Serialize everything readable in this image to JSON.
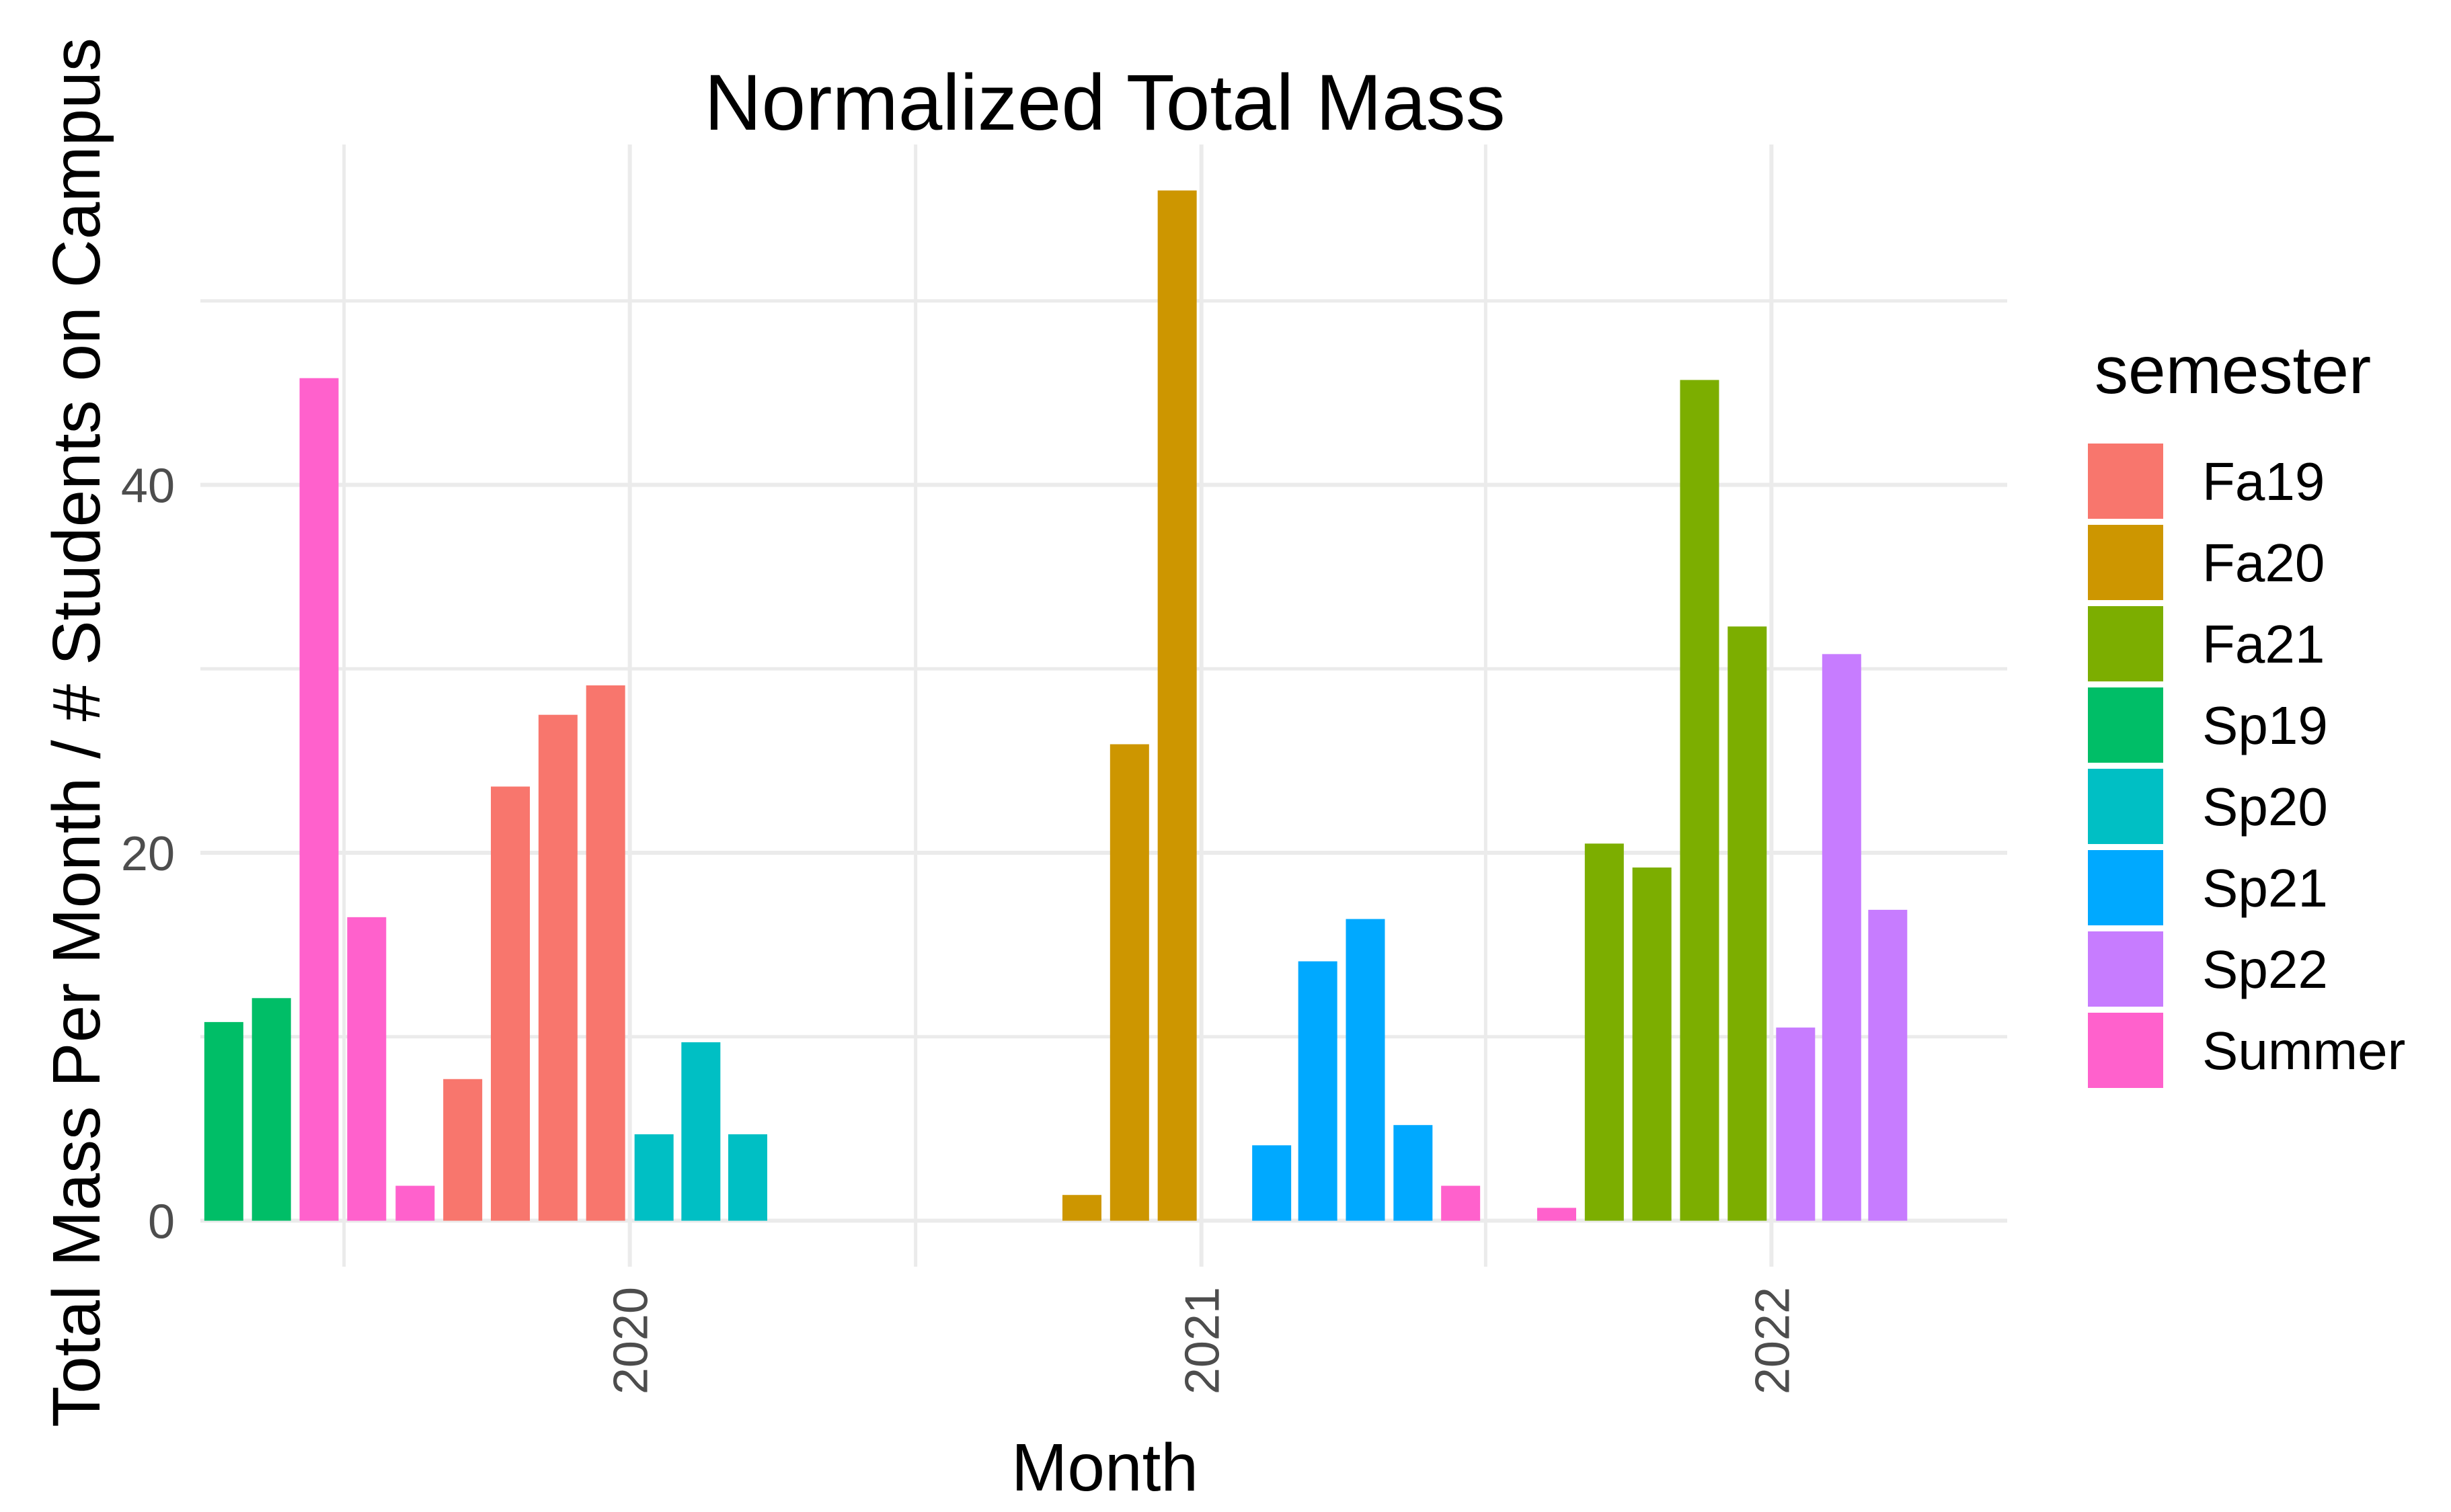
{
  "chart_data": {
    "type": "bar",
    "title": "Normalized Total Mass",
    "xlabel": "Month",
    "ylabel": "Total Mass Per Month / # Students on Campus",
    "x_axis": {
      "type": "date",
      "range": [
        "2019-04-01",
        "2022-06-01"
      ],
      "tick_labels": [
        "2020",
        "2021",
        "2022"
      ],
      "tick_dates": [
        "2020-01-01",
        "2021-01-01",
        "2022-01-01"
      ],
      "minor_gridlines_dates": [
        "2019-07-02",
        "2020-07-02",
        "2021-07-02"
      ],
      "tick_label_rotation": "vertical"
    },
    "y_axis": {
      "range": [
        -2.5,
        58.5
      ],
      "ticks": [
        0,
        20,
        40
      ],
      "minor_gridlines": [
        10,
        30,
        50
      ]
    },
    "grid": true,
    "legend": {
      "title": "semester",
      "position": "right",
      "entries": [
        {
          "name": "Fa19",
          "color": "#F8766D"
        },
        {
          "name": "Fa20",
          "color": "#CD9600"
        },
        {
          "name": "Fa21",
          "color": "#7CAE00"
        },
        {
          "name": "Sp19",
          "color": "#00BE67"
        },
        {
          "name": "Sp20",
          "color": "#00BFC4"
        },
        {
          "name": "Sp21",
          "color": "#00A9FF"
        },
        {
          "name": "Sp22",
          "color": "#C77CFF"
        },
        {
          "name": "Summer",
          "color": "#FF61CC"
        }
      ]
    },
    "bars": [
      {
        "month": "2019-04",
        "semester": "Sp19",
        "value": 10.8
      },
      {
        "month": "2019-05",
        "semester": "Sp19",
        "value": 12.1
      },
      {
        "month": "2019-06",
        "semester": "Summer",
        "value": 45.8
      },
      {
        "month": "2019-07",
        "semester": "Summer",
        "value": 16.5
      },
      {
        "month": "2019-08",
        "semester": "Summer",
        "value": 1.9
      },
      {
        "month": "2019-09",
        "semester": "Fa19",
        "value": 7.7
      },
      {
        "month": "2019-10",
        "semester": "Fa19",
        "value": 23.6
      },
      {
        "month": "2019-11",
        "semester": "Fa19",
        "value": 27.5
      },
      {
        "month": "2019-12",
        "semester": "Fa19",
        "value": 29.1
      },
      {
        "month": "2020-01",
        "semester": "Sp20",
        "value": 4.7
      },
      {
        "month": "2020-02",
        "semester": "Sp20",
        "value": 9.7
      },
      {
        "month": "2020-03",
        "semester": "Sp20",
        "value": 4.7
      },
      {
        "month": "2020-10",
        "semester": "Fa20",
        "value": 1.4
      },
      {
        "month": "2020-11",
        "semester": "Fa20",
        "value": 25.9
      },
      {
        "month": "2020-12",
        "semester": "Fa20",
        "value": 56.0
      },
      {
        "month": "2021-02",
        "semester": "Sp21",
        "value": 4.1
      },
      {
        "month": "2021-03",
        "semester": "Sp21",
        "value": 14.1
      },
      {
        "month": "2021-04",
        "semester": "Sp21",
        "value": 16.4
      },
      {
        "month": "2021-05",
        "semester": "Sp21",
        "value": 5.2
      },
      {
        "month": "2021-06",
        "semester": "Summer",
        "value": 1.9
      },
      {
        "month": "2021-08",
        "semester": "Summer",
        "value": 0.7
      },
      {
        "month": "2021-09",
        "semester": "Fa21",
        "value": 20.5
      },
      {
        "month": "2021-10",
        "semester": "Fa21",
        "value": 19.2
      },
      {
        "month": "2021-11",
        "semester": "Fa21",
        "value": 45.7
      },
      {
        "month": "2021-12",
        "semester": "Fa21",
        "value": 32.3
      },
      {
        "month": "2022-01",
        "semester": "Sp22",
        "value": 10.5
      },
      {
        "month": "2022-02",
        "semester": "Sp22",
        "value": 30.8
      },
      {
        "month": "2022-03",
        "semester": "Sp22",
        "value": 16.9
      }
    ]
  }
}
